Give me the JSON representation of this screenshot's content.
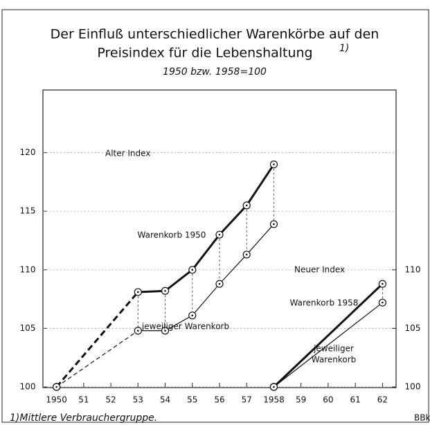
{
  "chart_data": {
    "type": "line",
    "title": [
      "Der Einfluß unterschiedlicher Warenkörbe auf den",
      "Preisindex für die Lebenshaltung"
    ],
    "title_note": "1)",
    "subtitle": "1950 bzw. 1958=100",
    "xlim": [
      1949.5,
      1962.5
    ],
    "xticks": [
      {
        "value": 1950,
        "label": "1950"
      },
      {
        "value": 1951,
        "label": "51"
      },
      {
        "value": 1952,
        "label": "52"
      },
      {
        "value": 1953,
        "label": "53"
      },
      {
        "value": 1954,
        "label": "54"
      },
      {
        "value": 1955,
        "label": "55"
      },
      {
        "value": 1956,
        "label": "56"
      },
      {
        "value": 1957,
        "label": "57"
      },
      {
        "value": 1958,
        "label": "1958"
      },
      {
        "value": 1959,
        "label": "59"
      },
      {
        "value": 1960,
        "label": "60"
      },
      {
        "value": 1961,
        "label": "61"
      },
      {
        "value": 1962,
        "label": "62"
      }
    ],
    "ylim": [
      100,
      125
    ],
    "yticks": [
      100,
      105,
      110,
      115,
      120
    ],
    "y2lim": [
      100,
      125
    ],
    "y2ticks": [
      100,
      105,
      110
    ],
    "grid": true,
    "connectors": true,
    "series": [
      {
        "name": "Warenkorb 1950",
        "color": "#111111",
        "width": 3,
        "dashed_first_segment": true,
        "x": [
          1950,
          1953,
          1954,
          1955,
          1956,
          1957,
          1958
        ],
        "values": [
          100,
          108.1,
          108.2,
          110,
          113,
          115.5,
          119
        ]
      },
      {
        "name": "jeweiliger Warenkorb",
        "color": "#111111",
        "width": 1.2,
        "dashed_first_segment": true,
        "x": [
          1950,
          1953,
          1954,
          1955,
          1956,
          1957,
          1958
        ],
        "values": [
          100,
          104.8,
          104.8,
          106.1,
          108.8,
          111.3,
          113.9
        ]
      },
      {
        "name": "Warenkorb 1958",
        "color": "#111111",
        "width": 3,
        "axis": "y2",
        "x": [
          1958,
          1962
        ],
        "values": [
          100,
          108.8
        ]
      },
      {
        "name": "jeweiliger Warenkorb",
        "color": "#111111",
        "width": 1.2,
        "axis": "y2",
        "x": [
          1958,
          1962
        ],
        "values": [
          100,
          107.2
        ]
      }
    ],
    "annotations": [
      "Alter Index",
      "Neuer Index",
      "jeweiliger",
      "Warenkorb"
    ],
    "footnote": "1)Mittlere Verbrauchergruppe.",
    "source": "BBk"
  }
}
